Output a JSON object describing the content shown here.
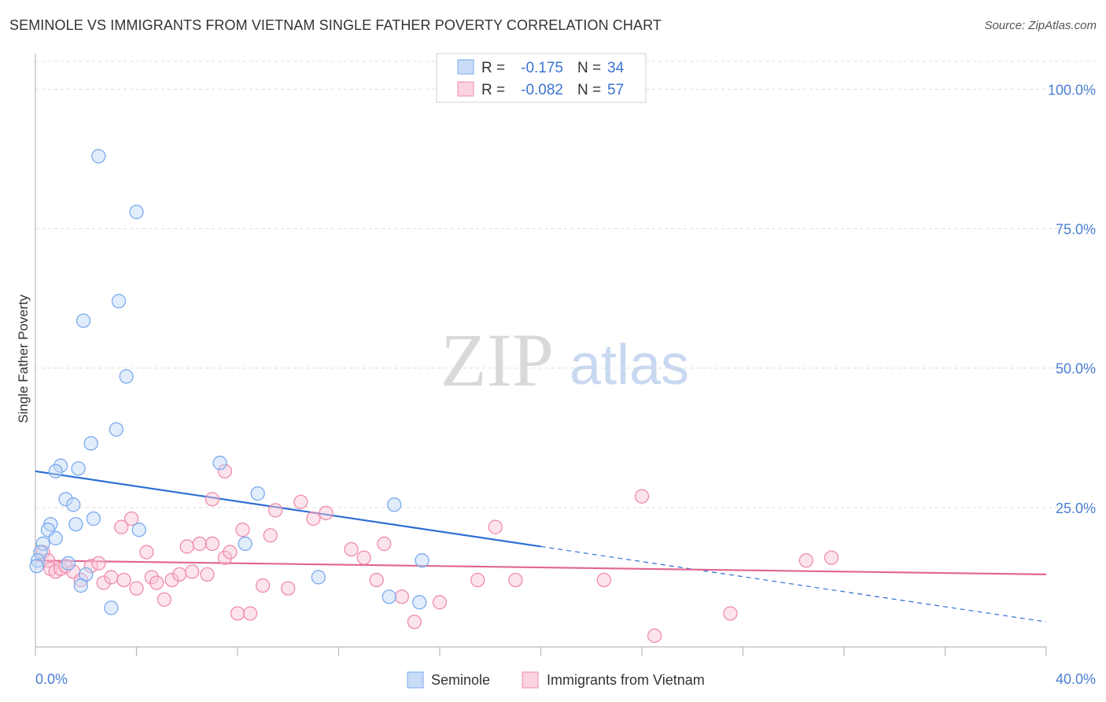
{
  "header": {
    "title": "SEMINOLE VS IMMIGRANTS FROM VIETNAM SINGLE FATHER POVERTY CORRELATION CHART",
    "source": "Source: ZipAtlas.com"
  },
  "watermark": {
    "zip": "ZIP",
    "atlas": "atlas"
  },
  "legend_top": {
    "rows": [
      {
        "r_label": "R =",
        "r_value": "-0.175",
        "n_label": "N =",
        "n_value": "34",
        "color": "#7aaaf0"
      },
      {
        "r_label": "R =",
        "r_value": "-0.082",
        "n_label": "N =",
        "n_value": "57",
        "color": "#f08cab"
      }
    ]
  },
  "legend_bottom": {
    "items": [
      "Seminole",
      "Immigrants from Vietnam"
    ]
  },
  "chart_data": {
    "type": "scatter",
    "title": "SEMINOLE VS IMMIGRANTS FROM VIETNAM SINGLE FATHER POVERTY CORRELATION CHART",
    "xlabel": "",
    "ylabel": "Single Father Poverty",
    "xlim": [
      0,
      40
    ],
    "ylim": [
      0,
      105
    ],
    "x_tick_labels": [
      "0.0%",
      "40.0%"
    ],
    "y_ticks": [
      25,
      50,
      75,
      100
    ],
    "y_tick_labels": [
      "25.0%",
      "50.0%",
      "75.0%",
      "100.0%"
    ],
    "grid": true,
    "legend_position": "bottom",
    "colors": {
      "seminole": "#7aaaf0",
      "vietnam": "#f08cab",
      "seminole_line": "#2d6fd4",
      "vietnam_line": "#e0668e",
      "tick_label": "#4a7fd4"
    },
    "series": [
      {
        "name": "Seminole",
        "r": -0.175,
        "n": 34,
        "trend": {
          "x0": 0,
          "y0": 31.5,
          "x1": 40,
          "y1": 4.5,
          "solid_until_x": 20
        },
        "points": [
          [
            2.5,
            88.0
          ],
          [
            4.0,
            78.0
          ],
          [
            3.3,
            62.0
          ],
          [
            1.9,
            58.5
          ],
          [
            3.6,
            48.5
          ],
          [
            3.2,
            39.0
          ],
          [
            2.2,
            36.5
          ],
          [
            7.3,
            33.0
          ],
          [
            1.0,
            32.5
          ],
          [
            0.8,
            31.5
          ],
          [
            1.7,
            32.0
          ],
          [
            8.8,
            27.5
          ],
          [
            1.2,
            26.5
          ],
          [
            1.5,
            25.5
          ],
          [
            14.2,
            25.5
          ],
          [
            2.3,
            23.0
          ],
          [
            0.6,
            22.0
          ],
          [
            1.6,
            22.0
          ],
          [
            4.1,
            21.0
          ],
          [
            0.5,
            21.0
          ],
          [
            0.8,
            19.5
          ],
          [
            8.3,
            18.5
          ],
          [
            0.3,
            18.5
          ],
          [
            0.2,
            17.0
          ],
          [
            0.1,
            15.5
          ],
          [
            1.3,
            15.0
          ],
          [
            0.05,
            14.5
          ],
          [
            2.0,
            13.0
          ],
          [
            11.2,
            12.5
          ],
          [
            15.3,
            15.5
          ],
          [
            1.8,
            11.0
          ],
          [
            14.0,
            9.0
          ],
          [
            15.2,
            8.0
          ],
          [
            3.0,
            7.0
          ]
        ]
      },
      {
        "name": "Immigrants from Vietnam",
        "r": -0.082,
        "n": 57,
        "trend": {
          "x0": 0,
          "y0": 15.5,
          "x1": 40,
          "y1": 13.0
        },
        "points": [
          [
            0.3,
            17.0
          ],
          [
            0.5,
            15.5
          ],
          [
            0.6,
            14.0
          ],
          [
            0.8,
            13.5
          ],
          [
            1.0,
            14.0
          ],
          [
            1.2,
            14.5
          ],
          [
            1.5,
            13.5
          ],
          [
            1.8,
            12.0
          ],
          [
            2.2,
            14.5
          ],
          [
            2.5,
            15.0
          ],
          [
            2.7,
            11.5
          ],
          [
            3.0,
            12.5
          ],
          [
            3.5,
            12.0
          ],
          [
            3.8,
            23.0
          ],
          [
            3.4,
            21.5
          ],
          [
            4.0,
            10.5
          ],
          [
            4.4,
            17.0
          ],
          [
            4.6,
            12.5
          ],
          [
            4.8,
            11.5
          ],
          [
            5.1,
            8.5
          ],
          [
            5.4,
            12.0
          ],
          [
            5.7,
            13.0
          ],
          [
            6.0,
            18.0
          ],
          [
            6.2,
            13.5
          ],
          [
            6.5,
            18.5
          ],
          [
            6.8,
            13.0
          ],
          [
            7.0,
            18.5
          ],
          [
            7.5,
            16.0
          ],
          [
            7.7,
            17.0
          ],
          [
            8.0,
            6.0
          ],
          [
            8.2,
            21.0
          ],
          [
            8.5,
            6.0
          ],
          [
            9.0,
            11.0
          ],
          [
            9.3,
            20.0
          ],
          [
            9.5,
            24.5
          ],
          [
            10.0,
            10.5
          ],
          [
            10.5,
            26.0
          ],
          [
            11.0,
            23.0
          ],
          [
            11.5,
            24.0
          ],
          [
            12.5,
            17.5
          ],
          [
            13.0,
            16.0
          ],
          [
            13.5,
            12.0
          ],
          [
            13.8,
            18.5
          ],
          [
            14.5,
            9.0
          ],
          [
            15.0,
            4.5
          ],
          [
            16.0,
            8.0
          ],
          [
            17.5,
            12.0
          ],
          [
            18.2,
            21.5
          ],
          [
            19.0,
            12.0
          ],
          [
            22.5,
            12.0
          ],
          [
            24.0,
            27.0
          ],
          [
            24.5,
            2.0
          ],
          [
            27.5,
            6.0
          ],
          [
            30.5,
            15.5
          ],
          [
            31.5,
            16.0
          ],
          [
            7.5,
            31.5
          ],
          [
            7.0,
            26.5
          ]
        ]
      }
    ]
  }
}
